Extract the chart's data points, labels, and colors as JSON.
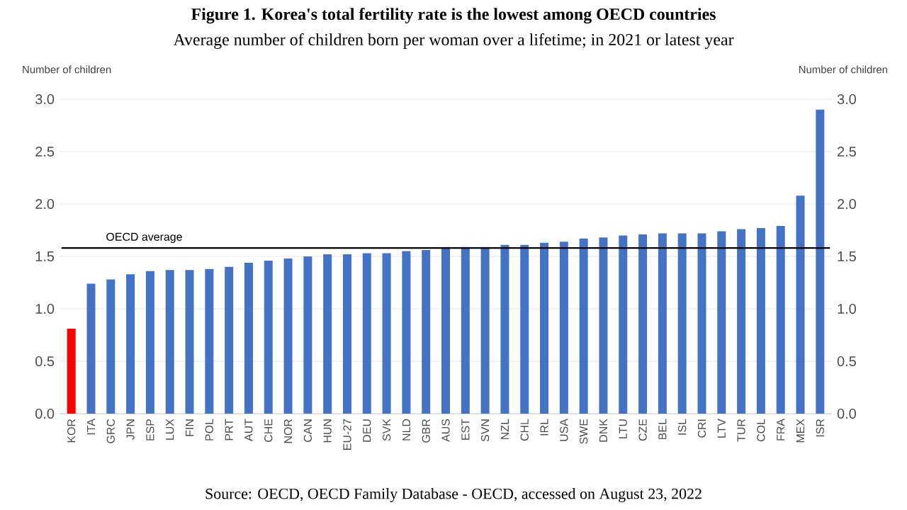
{
  "chart_data": {
    "type": "bar",
    "title": "Figure 1. Korea's total fertility rate is the lowest among OECD countries",
    "subtitle": "Average number of children born per woman over a lifetime; in 2021 or latest year",
    "ylabel": "Number of children",
    "y2label": "Number of children",
    "categories": [
      "KOR",
      "ITA",
      "GRC",
      "JPN",
      "ESP",
      "LUX",
      "FIN",
      "POL",
      "PRT",
      "AUT",
      "CHE",
      "NOR",
      "CAN",
      "HUN",
      "EU-27",
      "DEU",
      "SVK",
      "NLD",
      "GBR",
      "AUS",
      "EST",
      "SVN",
      "NZL",
      "CHL",
      "IRL",
      "USA",
      "SWE",
      "DNK",
      "LTU",
      "CZE",
      "BEL",
      "ISL",
      "CRI",
      "LTV",
      "TUR",
      "COL",
      "FRA",
      "MEX",
      "ISR"
    ],
    "values": [
      0.81,
      1.24,
      1.28,
      1.33,
      1.36,
      1.37,
      1.37,
      1.38,
      1.4,
      1.44,
      1.46,
      1.48,
      1.5,
      1.52,
      1.52,
      1.53,
      1.53,
      1.55,
      1.56,
      1.59,
      1.59,
      1.59,
      1.61,
      1.61,
      1.63,
      1.64,
      1.67,
      1.68,
      1.7,
      1.71,
      1.72,
      1.72,
      1.72,
      1.74,
      1.76,
      1.77,
      1.79,
      2.08,
      2.9
    ],
    "colors": [
      "#ff0000",
      "#4472c4",
      "#4472c4",
      "#4472c4",
      "#4472c4",
      "#4472c4",
      "#4472c4",
      "#4472c4",
      "#4472c4",
      "#4472c4",
      "#4472c4",
      "#4472c4",
      "#4472c4",
      "#4472c4",
      "#4472c4",
      "#4472c4",
      "#4472c4",
      "#4472c4",
      "#4472c4",
      "#4472c4",
      "#4472c4",
      "#4472c4",
      "#4472c4",
      "#4472c4",
      "#4472c4",
      "#4472c4",
      "#4472c4",
      "#4472c4",
      "#4472c4",
      "#4472c4",
      "#4472c4",
      "#4472c4",
      "#4472c4",
      "#4472c4",
      "#4472c4",
      "#4472c4",
      "#4472c4",
      "#4472c4",
      "#4472c4"
    ],
    "ylim": [
      0,
      3
    ],
    "yticks": [
      {
        "value": 0,
        "label": "0.0"
      },
      {
        "value": 0.5,
        "label": "0.5"
      },
      {
        "value": 1,
        "label": "1.0"
      },
      {
        "value": 1.5,
        "label": "1.5"
      },
      {
        "value": 2,
        "label": "2.0"
      },
      {
        "value": 2.5,
        "label": "2.5"
      },
      {
        "value": 3,
        "label": "3.0"
      }
    ],
    "y2lim": [
      0,
      3
    ],
    "y2ticks": [
      {
        "value": 0,
        "label": "0.0"
      },
      {
        "value": 0.5,
        "label": "0.5"
      },
      {
        "value": 1,
        "label": "1.0"
      },
      {
        "value": 1.5,
        "label": "1.5"
      },
      {
        "value": 2,
        "label": "2.0"
      },
      {
        "value": 2.5,
        "label": "2.5"
      },
      {
        "value": 3,
        "label": "3.0"
      }
    ],
    "ref_lines": [
      {
        "axis": "y",
        "value": 1.58,
        "label": "OECD average",
        "color": "#000000"
      }
    ],
    "annotations": [
      "Source: OECD, OECD Family Database - OECD, accessed on August 23, 2022"
    ],
    "grid": "y"
  }
}
